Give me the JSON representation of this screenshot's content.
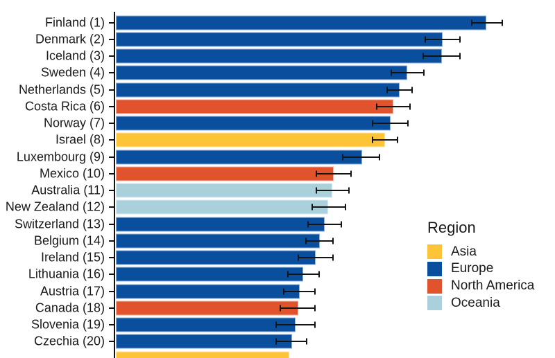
{
  "chart_data": {
    "type": "bar",
    "orientation": "horizontal",
    "title": "",
    "xlabel": "",
    "ylabel": "",
    "xlim": [
      5.9,
      8.08
    ],
    "x_axis_visible": false,
    "grid": false,
    "error_bars": true,
    "legend": {
      "title": "Region",
      "position": "right",
      "entries": [
        {
          "label": "Asia",
          "color": "#FCC436"
        },
        {
          "label": "Europe",
          "color": "#0A4F9D"
        },
        {
          "label": "North America",
          "color": "#E0532D"
        },
        {
          "label": "Oceania",
          "color": "#AAD0DC"
        }
      ]
    },
    "rows": [
      {
        "rank": 1,
        "label": "Finland (1)",
        "country": "Finland",
        "region": "Europe",
        "value": 7.736,
        "ci_low": 7.66,
        "ci_high": 7.82,
        "partially_visible": false
      },
      {
        "rank": 2,
        "label": "Denmark (2)",
        "country": "Denmark",
        "region": "Europe",
        "value": 7.521,
        "ci_low": 7.43,
        "ci_high": 7.61,
        "partially_visible": false
      },
      {
        "rank": 3,
        "label": "Iceland (3)",
        "country": "Iceland",
        "region": "Europe",
        "value": 7.515,
        "ci_low": 7.42,
        "ci_high": 7.61,
        "partially_visible": false
      },
      {
        "rank": 4,
        "label": "Sweden (4)",
        "country": "Sweden",
        "region": "Europe",
        "value": 7.345,
        "ci_low": 7.26,
        "ci_high": 7.43,
        "partially_visible": false
      },
      {
        "rank": 5,
        "label": "Netherlands (5)",
        "country": "Netherlands",
        "region": "Europe",
        "value": 7.306,
        "ci_low": 7.24,
        "ci_high": 7.37,
        "partially_visible": false
      },
      {
        "rank": 6,
        "label": "Costa Rica (6)",
        "country": "Costa Rica",
        "region": "North America",
        "value": 7.274,
        "ci_low": 7.19,
        "ci_high": 7.36,
        "partially_visible": false
      },
      {
        "rank": 7,
        "label": "Norway (7)",
        "country": "Norway",
        "region": "Europe",
        "value": 7.262,
        "ci_low": 7.17,
        "ci_high": 7.35,
        "partially_visible": false
      },
      {
        "rank": 8,
        "label": "Israel (8)",
        "country": "Israel",
        "region": "Asia",
        "value": 7.234,
        "ci_low": 7.17,
        "ci_high": 7.3,
        "partially_visible": false
      },
      {
        "rank": 9,
        "label": "Luxembourg (9)",
        "country": "Luxembourg",
        "region": "Europe",
        "value": 7.122,
        "ci_low": 7.02,
        "ci_high": 7.21,
        "partially_visible": false
      },
      {
        "rank": 10,
        "label": "Mexico (10)",
        "country": "Mexico",
        "region": "North America",
        "value": 6.979,
        "ci_low": 6.89,
        "ci_high": 7.07,
        "partially_visible": false
      },
      {
        "rank": 11,
        "label": "Australia (11)",
        "country": "Australia",
        "region": "Oceania",
        "value": 6.974,
        "ci_low": 6.89,
        "ci_high": 7.06,
        "partially_visible": false
      },
      {
        "rank": 12,
        "label": "New Zealand (12)",
        "country": "New Zealand",
        "region": "Oceania",
        "value": 6.952,
        "ci_low": 6.87,
        "ci_high": 7.04,
        "partially_visible": false
      },
      {
        "rank": 13,
        "label": "Switzerland (13)",
        "country": "Switzerland",
        "region": "Europe",
        "value": 6.935,
        "ci_low": 6.85,
        "ci_high": 7.02,
        "partially_visible": false
      },
      {
        "rank": 14,
        "label": "Belgium (14)",
        "country": "Belgium",
        "region": "Europe",
        "value": 6.91,
        "ci_low": 6.84,
        "ci_high": 6.98,
        "partially_visible": false
      },
      {
        "rank": 15,
        "label": "Ireland (15)",
        "country": "Ireland",
        "region": "Europe",
        "value": 6.889,
        "ci_low": 6.8,
        "ci_high": 6.98,
        "partially_visible": false
      },
      {
        "rank": 16,
        "label": "Lithuania (16)",
        "country": "Lithuania",
        "region": "Europe",
        "value": 6.829,
        "ci_low": 6.75,
        "ci_high": 6.91,
        "partially_visible": false
      },
      {
        "rank": 17,
        "label": "Austria (17)",
        "country": "Austria",
        "region": "Europe",
        "value": 6.81,
        "ci_low": 6.73,
        "ci_high": 6.89,
        "partially_visible": false
      },
      {
        "rank": 18,
        "label": "Canada (18)",
        "country": "Canada",
        "region": "North America",
        "value": 6.803,
        "ci_low": 6.71,
        "ci_high": 6.89,
        "partially_visible": false
      },
      {
        "rank": 19,
        "label": "Slovenia (19)",
        "country": "Slovenia",
        "region": "Europe",
        "value": 6.792,
        "ci_low": 6.69,
        "ci_high": 6.89,
        "partially_visible": false
      },
      {
        "rank": 20,
        "label": "Czechia (20)",
        "country": "Czechia",
        "region": "Europe",
        "value": 6.775,
        "ci_low": 6.69,
        "ci_high": 6.85,
        "partially_visible": false
      },
      {
        "rank": 21,
        "label": "",
        "country": "",
        "region": "Asia",
        "value": 6.76,
        "ci_low": null,
        "ci_high": null,
        "partially_visible": true
      }
    ]
  },
  "colors": {
    "axis": "#111111",
    "error_bar": "#141414",
    "text": "#1a1a1a",
    "background": "#ffffff"
  }
}
